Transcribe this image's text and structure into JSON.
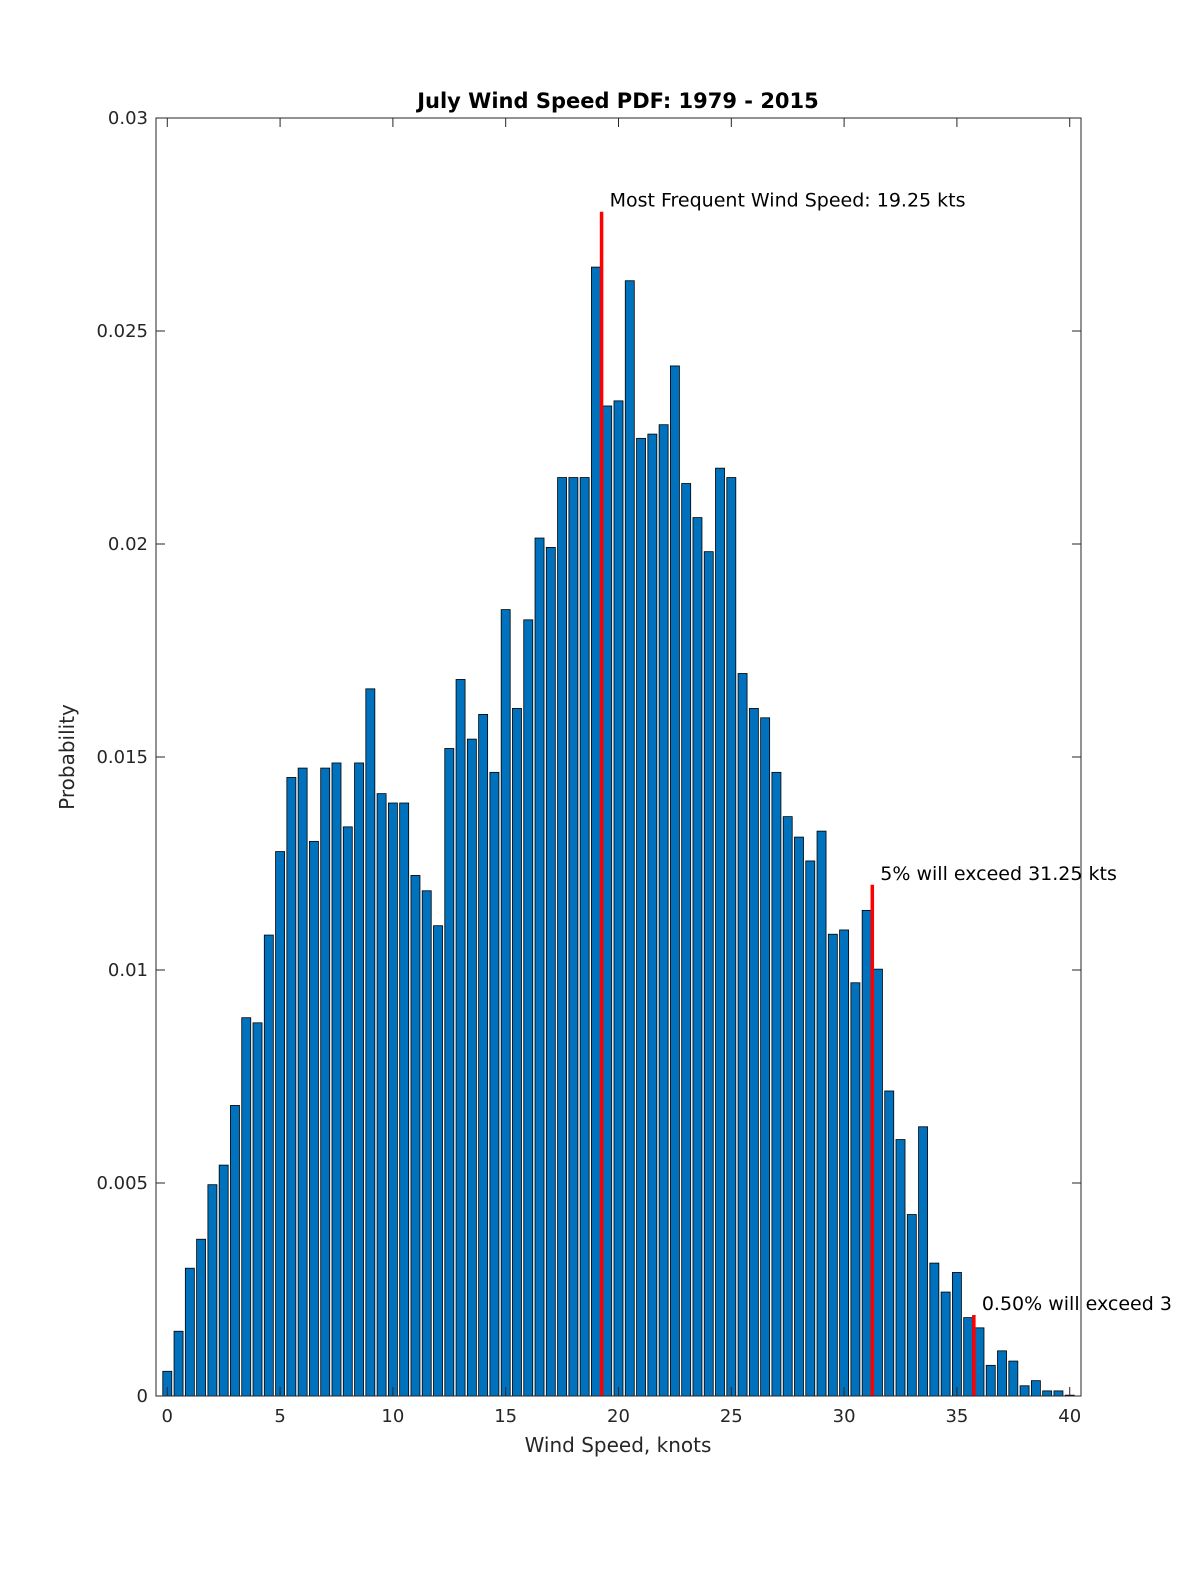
{
  "chart_data": {
    "type": "bar",
    "title": "July Wind Speed PDF: 1979 - 2015",
    "xlabel": "Wind Speed, knots",
    "ylabel": "Probability",
    "xlim": [
      -0.5,
      40.5
    ],
    "ylim": [
      0,
      0.03
    ],
    "xticks": [
      0,
      5,
      10,
      15,
      20,
      25,
      30,
      35,
      40
    ],
    "xtick_labels": [
      "0",
      "5",
      "10",
      "15",
      "20",
      "25",
      "30",
      "35",
      "40"
    ],
    "yticks": [
      0,
      0.005,
      0.01,
      0.015,
      0.02,
      0.025,
      0.03
    ],
    "ytick_labels": [
      "0",
      "0.005",
      "0.01",
      "0.015",
      "0.02",
      "0.025",
      "0.03"
    ],
    "bar_width": 0.4,
    "x": [
      0,
      0.5,
      1,
      1.5,
      2,
      2.5,
      3,
      3.5,
      4,
      4.5,
      5,
      5.5,
      6,
      6.5,
      7,
      7.5,
      8,
      8.5,
      9,
      9.5,
      10,
      10.5,
      11,
      11.5,
      12,
      12.5,
      13,
      13.5,
      14,
      14.5,
      15,
      15.5,
      16,
      16.5,
      17,
      17.5,
      18,
      18.5,
      19,
      19.5,
      20,
      20.5,
      21,
      21.5,
      22,
      22.5,
      23,
      23.5,
      24,
      24.5,
      25,
      25.5,
      26,
      26.5,
      27,
      27.5,
      28,
      28.5,
      29,
      29.5,
      30,
      30.5,
      31,
      31.5,
      32,
      32.5,
      33,
      33.5,
      34,
      34.5,
      35,
      35.5,
      36,
      36.5,
      37,
      37.5,
      38,
      38.5,
      39,
      39.5,
      40
    ],
    "values": [
      0.00058,
      0.00152,
      0.003,
      0.00368,
      0.00496,
      0.00542,
      0.00682,
      0.00888,
      0.00876,
      0.01082,
      0.01278,
      0.01452,
      0.01474,
      0.01302,
      0.01474,
      0.01486,
      0.01336,
      0.01486,
      0.0166,
      0.01414,
      0.01392,
      0.01392,
      0.01222,
      0.01186,
      0.01104,
      0.0152,
      0.01682,
      0.01542,
      0.016,
      0.01464,
      0.01846,
      0.01614,
      0.01822,
      0.02014,
      0.01992,
      0.02156,
      0.02156,
      0.02156,
      0.0265,
      0.02324,
      0.02336,
      0.02618,
      0.02248,
      0.02258,
      0.0228,
      0.02418,
      0.02142,
      0.02062,
      0.01982,
      0.02178,
      0.02156,
      0.01696,
      0.01614,
      0.01592,
      0.01464,
      0.0136,
      0.01312,
      0.01256,
      0.01326,
      0.01084,
      0.01094,
      0.0097,
      0.0114,
      0.01002,
      0.00716,
      0.00602,
      0.00426,
      0.00632,
      0.00312,
      0.00244,
      0.0029,
      0.00184,
      0.0016,
      0.00072,
      0.00106,
      0.00082,
      0.00024,
      0.00036,
      0.00012,
      0.00012,
      2e-05
    ],
    "bar_color": "#0072bd",
    "bar_edge_color": "#000000",
    "marker_color": "#ff0000",
    "markers": [
      {
        "x": 19.25,
        "y_top": 0.0278,
        "label": "Most Frequent Wind Speed: 19.25 kts"
      },
      {
        "x": 31.25,
        "y_top": 0.012,
        "label": "5% will exceed 31.25 kts"
      },
      {
        "x": 35.75,
        "y_top": 0.0019,
        "label": "0.50% will exceed 3"
      }
    ]
  }
}
